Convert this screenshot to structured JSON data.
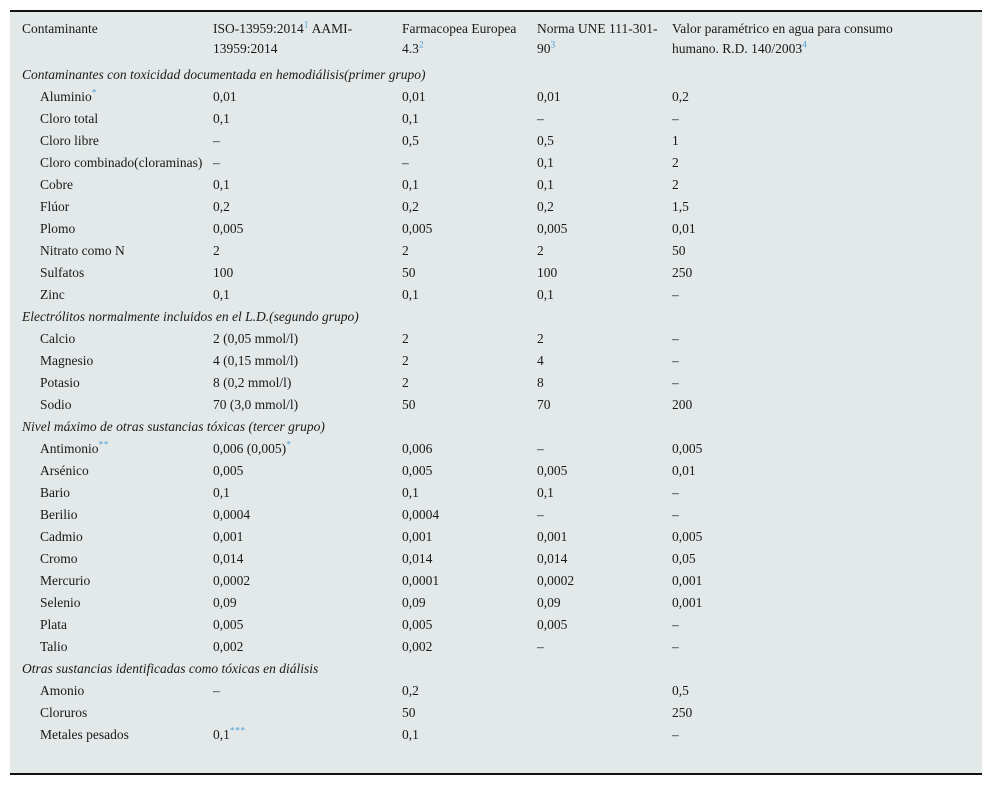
{
  "colors": {
    "table_background": "#e3e8e9",
    "rule_color": "#111111",
    "reference_blue": "#4da0d8",
    "text_color": "#1a1a1a"
  },
  "table": {
    "header": [
      {
        "text": "Contaminante"
      },
      {
        "text": "ISO-13959:2014",
        "sup": "1",
        "after": " AAMI-13959:2014"
      },
      {
        "text": "Farmacopea Europea 4.3",
        "sup": "2"
      },
      {
        "text": "Norma UNE 111-301-90",
        "sup": "3"
      },
      {
        "text": "Valor paramétrico en agua para consumo humano. R.D. 140/2003",
        "sup": "4"
      }
    ],
    "sections": [
      {
        "title": "Contaminantes con toxicidad documentada en hemodiálisis(primer grupo)",
        "rows": [
          {
            "name": "Aluminio",
            "name_sup": "*",
            "values": [
              "0,01",
              "0,01",
              "0,01",
              "0,2"
            ]
          },
          {
            "name": "Cloro total",
            "values": [
              "0,1",
              "0,1",
              "–",
              "–"
            ]
          },
          {
            "name": "Cloro libre",
            "values": [
              "–",
              "0,5",
              "0,5",
              "1"
            ]
          },
          {
            "name": "Cloro combinado(cloraminas)",
            "values": [
              "–",
              "–",
              "0,1",
              "2"
            ]
          },
          {
            "name": "Cobre",
            "values": [
              "0,1",
              "0,1",
              "0,1",
              "2"
            ]
          },
          {
            "name": "Flúor",
            "values": [
              "0,2",
              "0,2",
              "0,2",
              "1,5"
            ]
          },
          {
            "name": "Plomo",
            "values": [
              "0,005",
              "0,005",
              "0,005",
              "0,01"
            ]
          },
          {
            "name": "Nitrato como N",
            "values": [
              "2",
              "2",
              "2",
              "50"
            ]
          },
          {
            "name": "Sulfatos",
            "values": [
              "100",
              "50",
              "100",
              "250"
            ]
          },
          {
            "name": "Zinc",
            "values": [
              "0,1",
              "0,1",
              "0,1",
              "–"
            ]
          }
        ]
      },
      {
        "title": "Electrólitos normalmente incluidos en el L.D.(segundo grupo)",
        "rows": [
          {
            "name": "Calcio",
            "values": [
              "2 (0,05 mmol/l)",
              "2",
              "2",
              "–"
            ]
          },
          {
            "name": "Magnesio",
            "values": [
              "4 (0,15 mmol/l)",
              "2",
              "4",
              "–"
            ]
          },
          {
            "name": "Potasio",
            "values": [
              "8 (0,2 mmol/l)",
              "2",
              "8",
              "–"
            ]
          },
          {
            "name": "Sodio",
            "values": [
              "70 (3,0 mmol/l)",
              "50",
              "70",
              "200"
            ]
          }
        ]
      },
      {
        "title": "Nivel máximo de otras sustancias tóxicas (tercer grupo)",
        "rows": [
          {
            "name": "Antimonio",
            "name_sup": "**",
            "values": [
              {
                "text": "0,006 (0,005)",
                "sup": "*"
              },
              "0,006",
              "–",
              "0,005"
            ]
          },
          {
            "name": "Arsénico",
            "values": [
              "0,005",
              "0,005",
              "0,005",
              "0,01"
            ]
          },
          {
            "name": "Bario",
            "values": [
              "0,1",
              "0,1",
              "0,1",
              "–"
            ]
          },
          {
            "name": "Berilio",
            "values": [
              "0,0004",
              "0,0004",
              "–",
              "–"
            ]
          },
          {
            "name": "Cadmio",
            "values": [
              "0,001",
              "0,001",
              "0,001",
              "0,005"
            ]
          },
          {
            "name": "Cromo",
            "values": [
              "0,014",
              "0,014",
              "0,014",
              "0,05"
            ]
          },
          {
            "name": "Mercurio",
            "values": [
              "0,0002",
              "0,0001",
              "0,0002",
              "0,001"
            ]
          },
          {
            "name": "Selenio",
            "values": [
              "0,09",
              "0,09",
              "0,09",
              "0,001"
            ]
          },
          {
            "name": "Plata",
            "values": [
              "0,005",
              "0,005",
              "0,005",
              "–"
            ]
          },
          {
            "name": "Talio",
            "values": [
              "0,002",
              "0,002",
              "–",
              "–"
            ]
          }
        ]
      },
      {
        "title": "Otras sustancias identificadas como tóxicas en diálisis",
        "rows": [
          {
            "name": "Amonio",
            "values": [
              "–",
              "0,2",
              "",
              "0,5"
            ]
          },
          {
            "name": "Cloruros",
            "values": [
              "",
              "50",
              "",
              "250"
            ]
          },
          {
            "name": "Metales pesados",
            "values": [
              {
                "text": "0,1",
                "sup": "***"
              },
              "0,1",
              "",
              "–"
            ]
          }
        ]
      }
    ]
  }
}
